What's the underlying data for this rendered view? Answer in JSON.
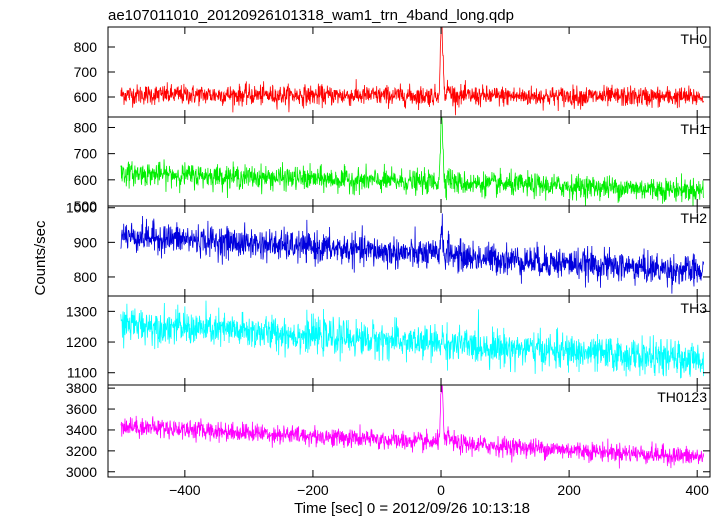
{
  "chart_data": {
    "type": "line",
    "title": "ae107011010_20120926101318_wam1_trn_4band_long.qdp",
    "xlabel": "Time [sec] 0 = 2012/09/26 10:13:18",
    "ylabel": "Counts/sec",
    "xlim": [
      -520,
      420
    ],
    "x_ticks": [
      -400,
      -200,
      0,
      200,
      400
    ],
    "x_tick_labels": [
      "−400",
      "−200",
      "0",
      "200",
      "400"
    ],
    "data_range": [
      -500,
      410
    ],
    "grid": false,
    "legend": "none",
    "panels": [
      {
        "name": "TH0",
        "color": "#ff0000",
        "ylim": [
          520,
          880
        ],
        "y_ticks": [
          600,
          700,
          800
        ],
        "baseline_start": 610,
        "baseline_end": 600,
        "noise": 20,
        "burst_peak": 890,
        "burst_level": 680
      },
      {
        "name": "TH1",
        "color": "#00ee00",
        "ylim": [
          500,
          840
        ],
        "y_ticks": [
          500,
          600,
          700,
          800
        ],
        "baseline_start": 625,
        "baseline_end": 560,
        "noise": 22,
        "burst_peak": 830,
        "burst_level": 660
      },
      {
        "name": "TH2",
        "color": "#0000dd",
        "ylim": [
          745,
          1005
        ],
        "y_ticks": [
          800,
          900,
          1000
        ],
        "baseline_start": 920,
        "baseline_end": 815,
        "noise": 22,
        "burst_peak": 940,
        "burst_level": 915
      },
      {
        "name": "TH3",
        "color": "#00ffff",
        "ylim": [
          1060,
          1350
        ],
        "y_ticks": [
          1100,
          1200,
          1300
        ],
        "baseline_start": 1260,
        "baseline_end": 1140,
        "noise": 28,
        "burst_peak": 1210,
        "burst_level": 1190
      },
      {
        "name": "TH0123",
        "color": "#ff00ff",
        "ylim": [
          2950,
          3830
        ],
        "y_ticks": [
          3000,
          3200,
          3400,
          3600,
          3800
        ],
        "baseline_start": 3440,
        "baseline_end": 3140,
        "noise": 45,
        "burst_peak": 3830,
        "burst_level": 3480
      }
    ]
  }
}
